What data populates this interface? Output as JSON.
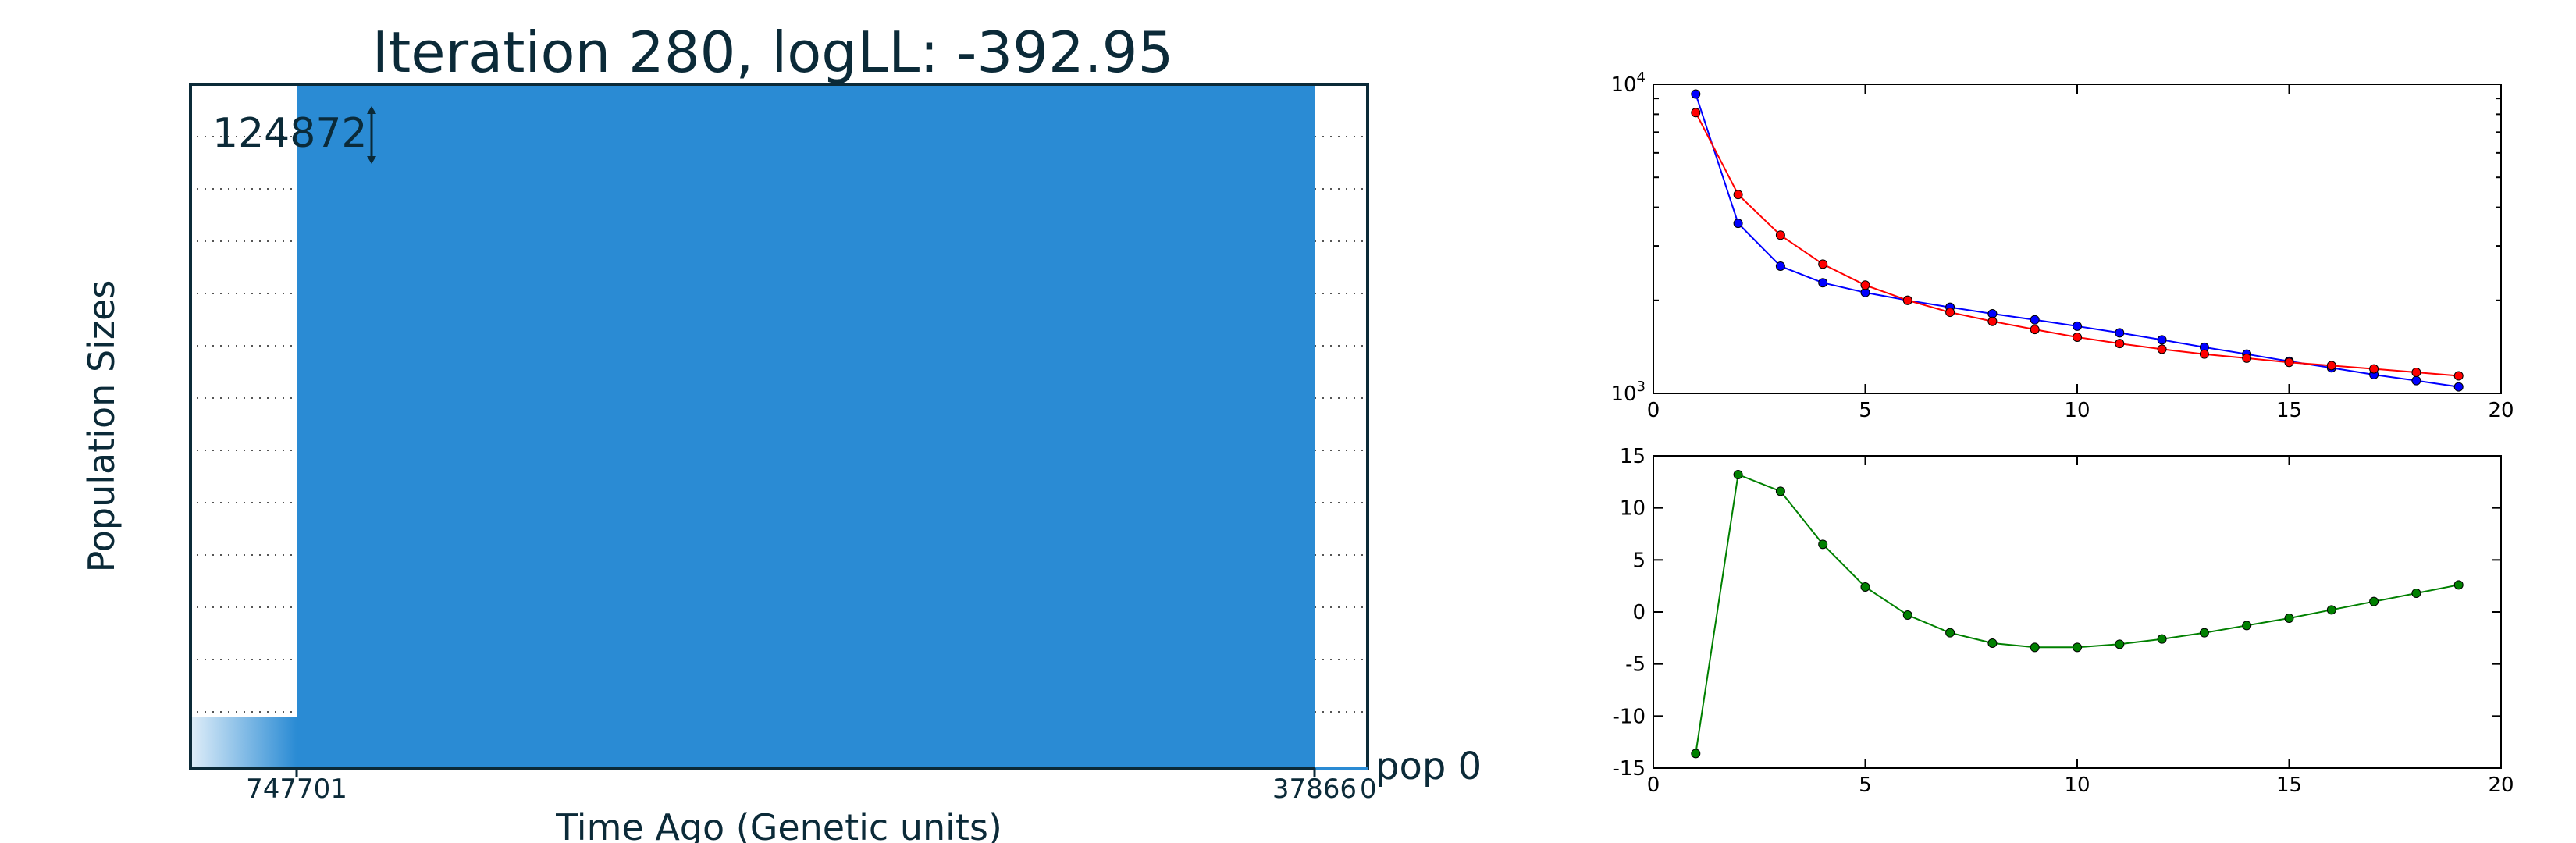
{
  "chart_data": [
    {
      "type": "area",
      "title": "Iteration 280, logLL:    -392.95",
      "xlabel": "Time Ago (Genetic units)",
      "ylabel": "Population Sizes",
      "x_tick_labels": [
        "747701",
        "37866",
        "0"
      ],
      "series": [
        {
          "name": "pop 0",
          "scale_label": "124872",
          "color": "#2a8bd4"
        }
      ],
      "grid": true
    },
    {
      "type": "line",
      "yscale": "log",
      "xlim": [
        0,
        20
      ],
      "ylim": [
        1000,
        10000
      ],
      "x_ticks": [
        0,
        5,
        10,
        15,
        20
      ],
      "y_ticks": [
        {
          "value": 10000,
          "base": "10",
          "exp": "4"
        },
        {
          "value": 1000,
          "base": "10",
          "exp": "3"
        }
      ],
      "series": [
        {
          "color": "#0000ff",
          "x": [
            1,
            2,
            3,
            4,
            5,
            6,
            7,
            8,
            9,
            10,
            11,
            12,
            13,
            14,
            15,
            16,
            17,
            18,
            19
          ],
          "values": [
            9300,
            3550,
            2580,
            2280,
            2120,
            2000,
            1900,
            1810,
            1730,
            1650,
            1570,
            1490,
            1410,
            1340,
            1270,
            1210,
            1150,
            1100,
            1050
          ]
        },
        {
          "color": "#ff0000",
          "x": [
            1,
            2,
            3,
            4,
            5,
            6,
            7,
            8,
            9,
            10,
            11,
            12,
            13,
            14,
            15,
            16,
            17,
            18,
            19
          ],
          "values": [
            8100,
            4400,
            3250,
            2620,
            2240,
            2000,
            1830,
            1710,
            1610,
            1520,
            1450,
            1390,
            1340,
            1300,
            1260,
            1230,
            1200,
            1170,
            1140
          ]
        }
      ]
    },
    {
      "type": "line",
      "xlim": [
        0,
        20
      ],
      "ylim": [
        -15,
        15
      ],
      "x_ticks": [
        0,
        5,
        10,
        15,
        20
      ],
      "y_ticks": [
        15,
        10,
        5,
        0,
        -5,
        -10,
        -15
      ],
      "series": [
        {
          "color": "#008000",
          "x": [
            1,
            2,
            3,
            4,
            5,
            6,
            7,
            8,
            9,
            10,
            11,
            12,
            13,
            14,
            15,
            16,
            17,
            18,
            19
          ],
          "values": [
            -13.6,
            13.2,
            11.6,
            6.5,
            2.4,
            -0.3,
            -2.0,
            -3.0,
            -3.4,
            -3.4,
            -3.1,
            -2.6,
            -2.0,
            -1.3,
            -0.6,
            0.2,
            1.0,
            1.8,
            2.6
          ]
        }
      ]
    }
  ]
}
